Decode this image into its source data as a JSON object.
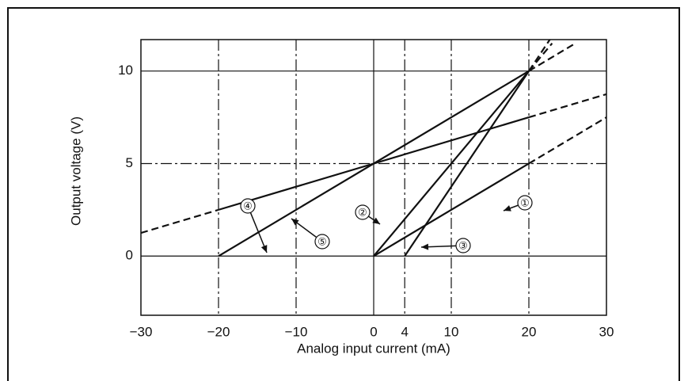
{
  "chart_data": {
    "type": "line",
    "x_label": "Analog input current (mA)",
    "y_label": "Output voltage (V)",
    "xlim": [
      -30,
      30
    ],
    "ylim": [
      -3.2,
      11.7
    ],
    "xticks": [
      {
        "value": -30,
        "label": "−30"
      },
      {
        "value": -20,
        "label": "−20"
      },
      {
        "value": -10,
        "label": "−10"
      },
      0,
      4,
      10,
      20,
      30
    ],
    "yticks": [
      0,
      5,
      10
    ],
    "grid": true,
    "color": "#111111",
    "series": [
      {
        "name": "①",
        "x": [
          0,
          20
        ],
        "values": [
          0,
          5
        ],
        "extensions": [
          {
            "x": [
              20,
              30
            ],
            "values": [
              5,
              7.5
            ]
          }
        ]
      },
      {
        "name": "②",
        "x": [
          0,
          20
        ],
        "values": [
          0,
          10
        ],
        "extensions": [
          {
            "x": [
              20,
              23
            ],
            "values": [
              10,
              11.5
            ]
          }
        ]
      },
      {
        "name": "③",
        "x": [
          4,
          20
        ],
        "values": [
          0,
          10
        ],
        "extensions": [
          {
            "x": [
              20,
              22.7
            ],
            "values": [
              10,
              11.7
            ]
          }
        ]
      },
      {
        "name": "④",
        "x": [
          -20,
          20
        ],
        "values": [
          2.5,
          7.5
        ],
        "extensions": [
          {
            "x": [
              -30,
              -20
            ],
            "values": [
              1.25,
              2.5
            ]
          },
          {
            "x": [
              20,
              30
            ],
            "values": [
              7.5,
              8.75
            ]
          }
        ]
      },
      {
        "name": "⑤",
        "x": [
          -20,
          20
        ],
        "values": [
          0,
          10
        ],
        "extensions": [
          {
            "x": [
              20,
              26
            ],
            "values": [
              10,
              11.5
            ]
          }
        ]
      }
    ]
  }
}
